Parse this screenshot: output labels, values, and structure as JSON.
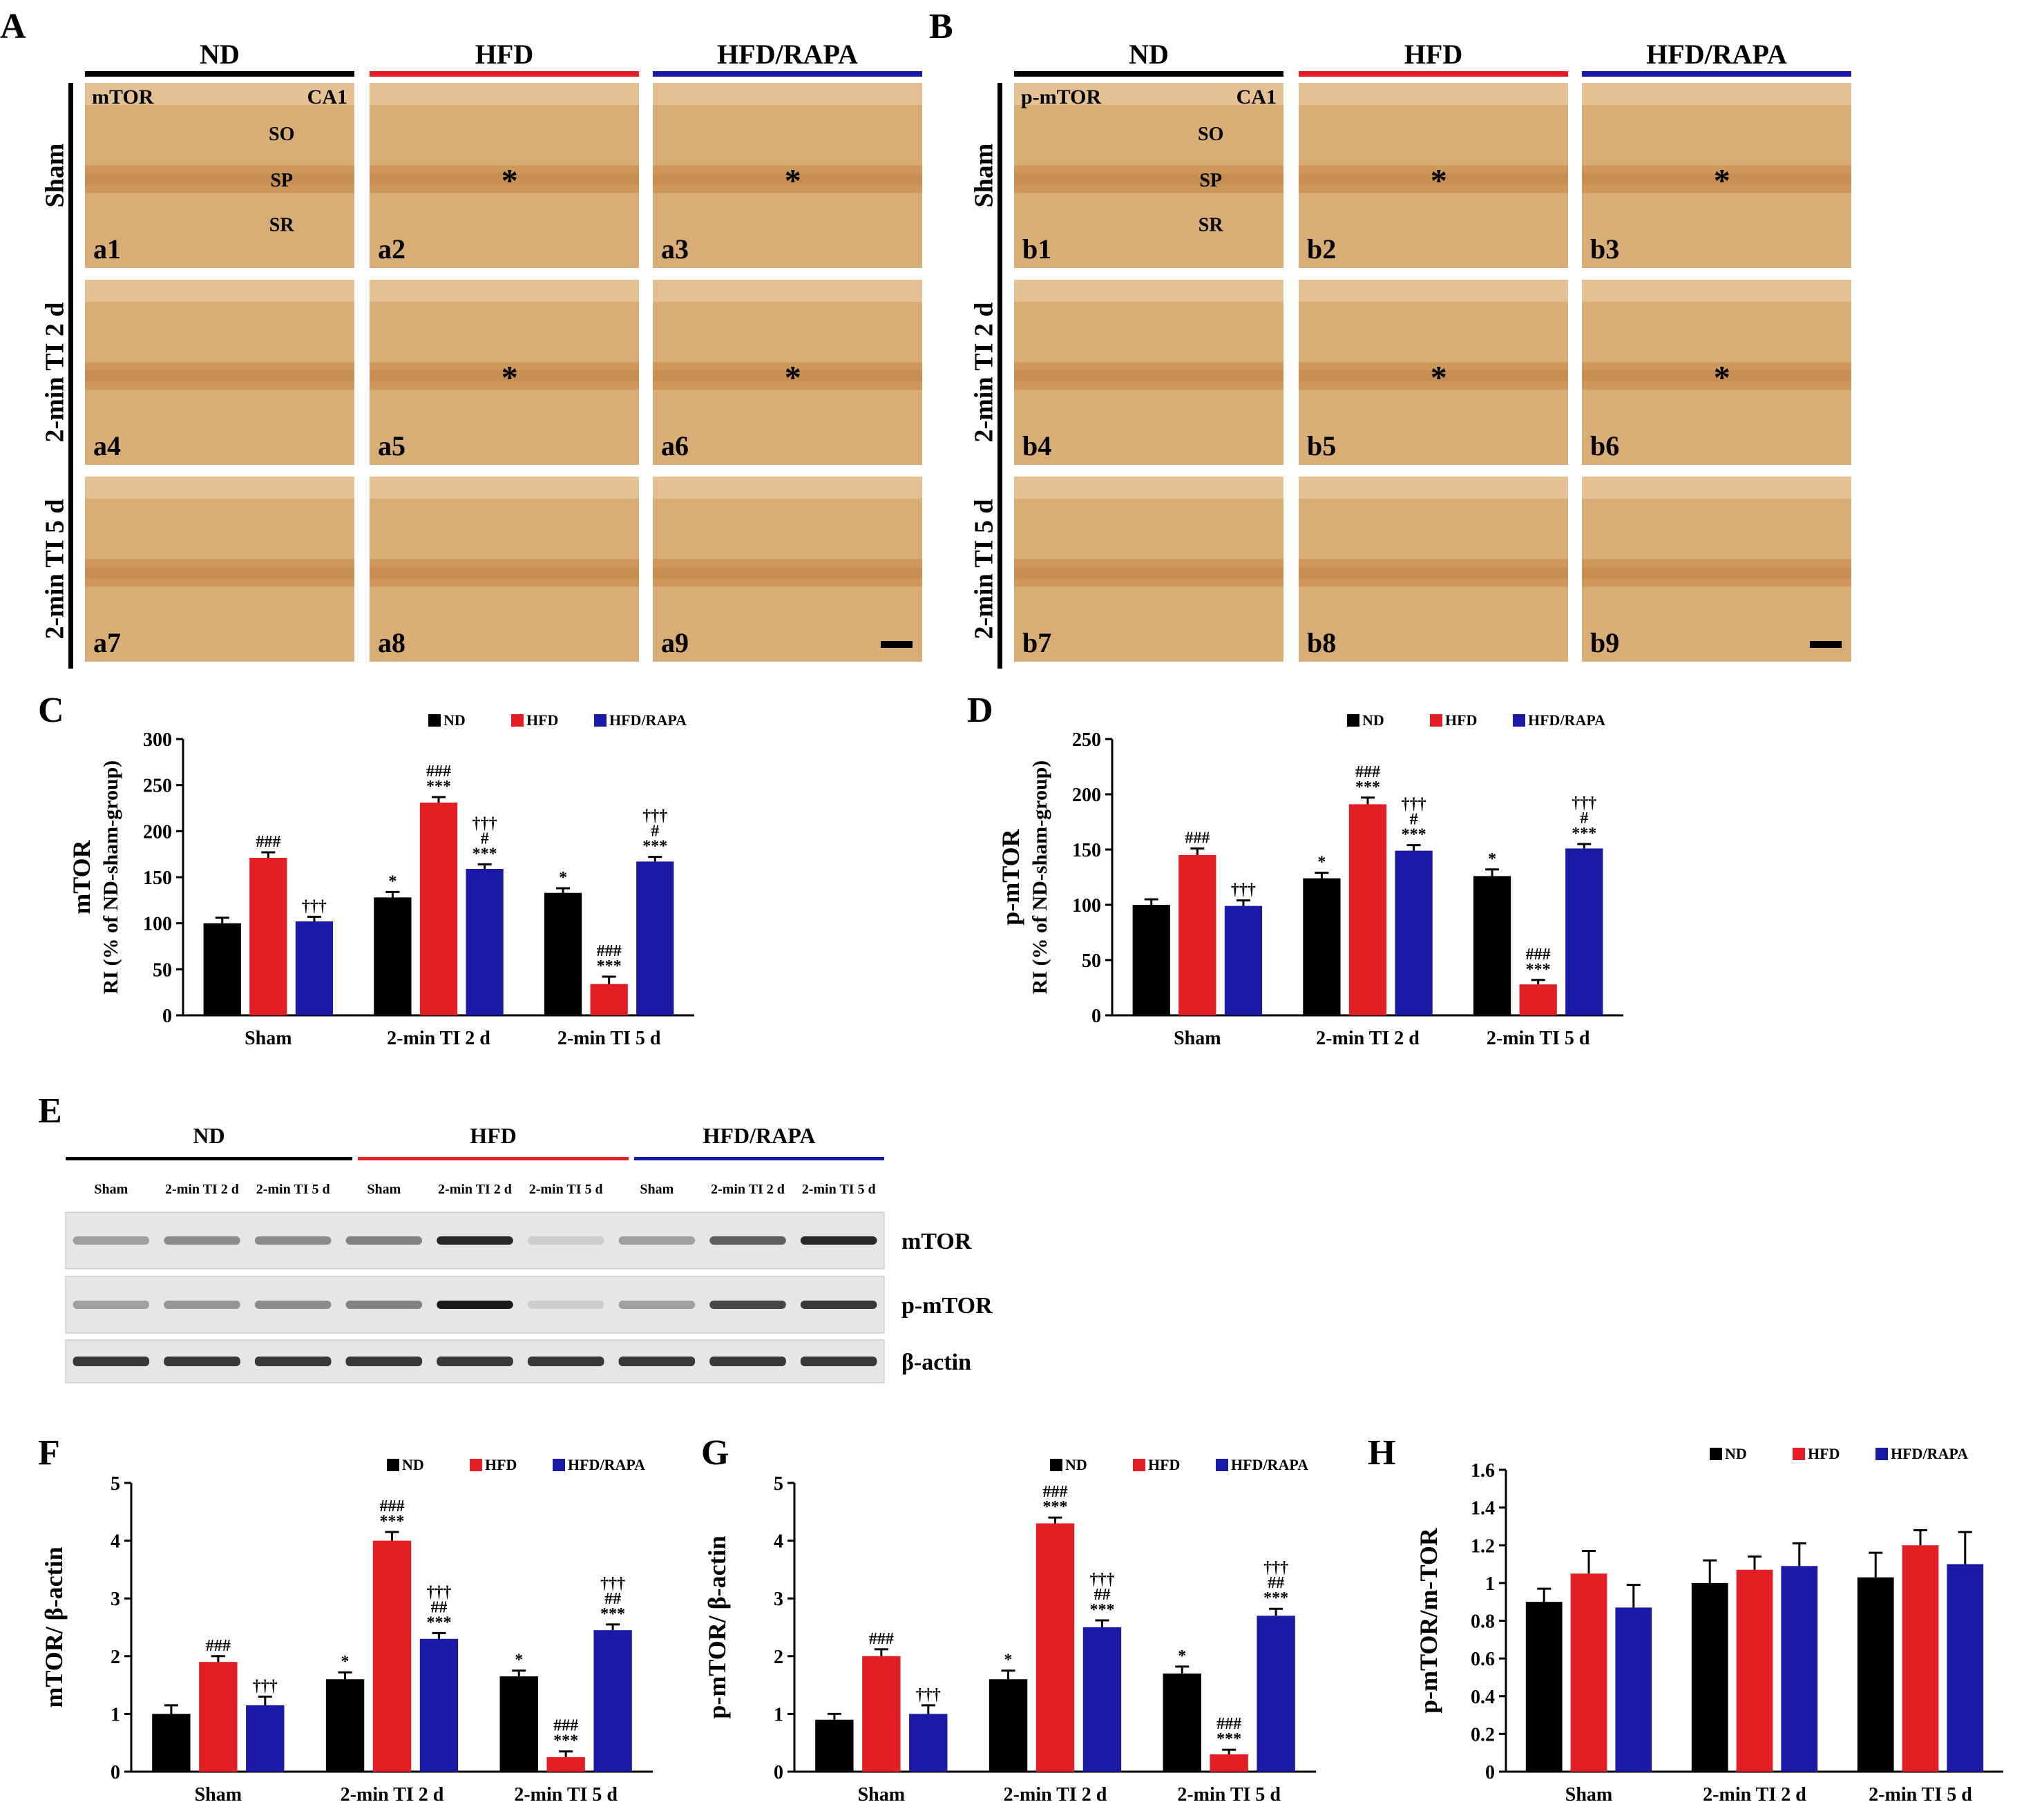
{
  "panel_letters": {
    "A": "A",
    "B": "B",
    "C": "C",
    "D": "D",
    "E": "E",
    "F": "F",
    "G": "G",
    "H": "H"
  },
  "colors": {
    "ND": "#000000",
    "HFD": "#e31e24",
    "HFD_RAPA": "#1a1aa6",
    "tissue": "#d9ad76",
    "tissue_dark": "#c98f50",
    "tissue_light": "#e9cfa6"
  },
  "groups": [
    "ND",
    "HFD",
    "HFD/RAPA"
  ],
  "micro_rows": [
    "Sham",
    "2-min TI 2 d",
    "2-min TI 5 d"
  ],
  "layers": [
    "SO",
    "SP",
    "SR"
  ],
  "region": "CA1",
  "micro_A": {
    "stain": "mTOR",
    "labels": [
      "a1",
      "a2",
      "a3",
      "a4",
      "a5",
      "a6",
      "a7",
      "a8",
      "a9"
    ]
  },
  "micro_B": {
    "stain": "p-mTOR",
    "labels": [
      "b1",
      "b2",
      "b3",
      "b4",
      "b5",
      "b6",
      "b7",
      "b8",
      "b9"
    ]
  },
  "asterisk": "*",
  "western": {
    "groups": [
      "ND",
      "HFD",
      "HFD/RAPA"
    ],
    "lanes": [
      "Sham",
      "2-min TI 2 d",
      "2-min TI 5 d",
      "Sham",
      "2-min TI 2 d",
      "2-min TI 5 d",
      "Sham",
      "2-min TI 2 d",
      "2-min TI 5 d"
    ],
    "blots": [
      {
        "name": "mTOR",
        "intensity": [
          0.45,
          0.55,
          0.55,
          0.6,
          0.95,
          0.15,
          0.45,
          0.75,
          0.95
        ]
      },
      {
        "name": "p-mTOR",
        "intensity": [
          0.45,
          0.5,
          0.55,
          0.6,
          1.0,
          0.15,
          0.45,
          0.85,
          0.9
        ]
      },
      {
        "name": "β-actin",
        "intensity": [
          0.9,
          0.9,
          0.9,
          0.9,
          0.9,
          0.9,
          0.9,
          0.9,
          0.9
        ]
      }
    ]
  },
  "chart_data": [
    {
      "id": "C",
      "type": "bar",
      "ylabel_main": "mTOR",
      "ylabel_sub": "RI (% of ND-sham-group)",
      "categories": [
        "Sham",
        "2-min TI 2 d",
        "2-min TI 5 d"
      ],
      "ylim": [
        0,
        300
      ],
      "yticks": [
        "0",
        "50",
        "100",
        "150",
        "200",
        "250",
        "300"
      ],
      "series": [
        {
          "name": "ND",
          "values": [
            100,
            128,
            133
          ],
          "errors": [
            6,
            6,
            5
          ],
          "annot": [
            "",
            "*",
            "*"
          ]
        },
        {
          "name": "HFD",
          "values": [
            171,
            231,
            34
          ],
          "errors": [
            6,
            6,
            8
          ],
          "annot": [
            "###",
            "***|###",
            "***|###"
          ]
        },
        {
          "name": "HFD/RAPA",
          "values": [
            102,
            159,
            167
          ],
          "errors": [
            5,
            5,
            5
          ],
          "annot": [
            "†††",
            "***|#|†††",
            "***|#|†††"
          ]
        }
      ]
    },
    {
      "id": "D",
      "type": "bar",
      "ylabel_main": "p-mTOR",
      "ylabel_sub": "RI (% of ND-sham-group)",
      "categories": [
        "Sham",
        "2-min TI 2 d",
        "2-min TI 5 d"
      ],
      "ylim": [
        0,
        250
      ],
      "yticks": [
        "0",
        "50",
        "100",
        "150",
        "200",
        "250"
      ],
      "series": [
        {
          "name": "ND",
          "values": [
            100,
            124,
            126
          ],
          "errors": [
            5,
            5,
            6
          ],
          "annot": [
            "",
            "*",
            "*"
          ]
        },
        {
          "name": "HFD",
          "values": [
            145,
            191,
            28
          ],
          "errors": [
            6,
            6,
            4
          ],
          "annot": [
            "###",
            "***|###",
            "***|###"
          ]
        },
        {
          "name": "HFD/RAPA",
          "values": [
            99,
            149,
            151
          ],
          "errors": [
            5,
            5,
            4
          ],
          "annot": [
            "†††",
            "***|#|†††",
            "***|#|†††"
          ]
        }
      ]
    },
    {
      "id": "F",
      "type": "bar",
      "ylabel_main": "mTOR/ β-actin",
      "ylabel_sub": "",
      "categories": [
        "Sham",
        "2-min TI 2 d",
        "2-min TI 5 d"
      ],
      "ylim": [
        0,
        5
      ],
      "yticks": [
        "0",
        "1",
        "2",
        "3",
        "4",
        "5"
      ],
      "series": [
        {
          "name": "ND",
          "values": [
            1.0,
            1.6,
            1.65
          ],
          "errors": [
            0.15,
            0.12,
            0.1
          ],
          "annot": [
            "",
            "*",
            "*"
          ]
        },
        {
          "name": "HFD",
          "values": [
            1.9,
            4.0,
            0.25
          ],
          "errors": [
            0.1,
            0.15,
            0.1
          ],
          "annot": [
            "###",
            "***|###",
            "***|###"
          ]
        },
        {
          "name": "HFD/RAPA",
          "values": [
            1.15,
            2.3,
            2.45
          ],
          "errors": [
            0.15,
            0.1,
            0.1
          ],
          "annot": [
            "†††",
            "***|##|†††",
            "***|##|†††"
          ]
        }
      ]
    },
    {
      "id": "G",
      "type": "bar",
      "ylabel_main": "p-mTOR/ β-actin",
      "ylabel_sub": "",
      "categories": [
        "Sham",
        "2-min TI 2 d",
        "2-min TI 5 d"
      ],
      "ylim": [
        0,
        5
      ],
      "yticks": [
        "0",
        "1",
        "2",
        "3",
        "4",
        "5"
      ],
      "series": [
        {
          "name": "ND",
          "values": [
            0.9,
            1.6,
            1.7
          ],
          "errors": [
            0.1,
            0.15,
            0.12
          ],
          "annot": [
            "",
            "*",
            "*"
          ]
        },
        {
          "name": "HFD",
          "values": [
            2.0,
            4.3,
            0.3
          ],
          "errors": [
            0.12,
            0.1,
            0.08
          ],
          "annot": [
            "###",
            "***|###",
            "***|###"
          ]
        },
        {
          "name": "HFD/RAPA",
          "values": [
            1.0,
            2.5,
            2.7
          ],
          "errors": [
            0.15,
            0.12,
            0.12
          ],
          "annot": [
            "†††",
            "***|##|†††",
            "***|##|†††"
          ]
        }
      ]
    },
    {
      "id": "H",
      "type": "bar",
      "ylabel_main": "p-mTOR/m-TOR",
      "ylabel_sub": "",
      "categories": [
        "Sham",
        "2-min TI 2 d",
        "2-min TI 5 d"
      ],
      "ylim": [
        0,
        1.6
      ],
      "yticks": [
        "0",
        "0.2",
        "0.4",
        "0.6",
        "0.8",
        "1",
        "1.2",
        "1.4",
        "1.6"
      ],
      "series": [
        {
          "name": "ND",
          "values": [
            0.9,
            1.0,
            1.03
          ],
          "errors": [
            0.07,
            0.12,
            0.13
          ],
          "annot": [
            "",
            "",
            ""
          ]
        },
        {
          "name": "HFD",
          "values": [
            1.05,
            1.07,
            1.2
          ],
          "errors": [
            0.12,
            0.07,
            0.08
          ],
          "annot": [
            "",
            "",
            ""
          ]
        },
        {
          "name": "HFD/RAPA",
          "values": [
            0.87,
            1.09,
            1.1
          ],
          "errors": [
            0.12,
            0.12,
            0.17
          ],
          "annot": [
            "",
            "",
            ""
          ]
        }
      ]
    }
  ]
}
